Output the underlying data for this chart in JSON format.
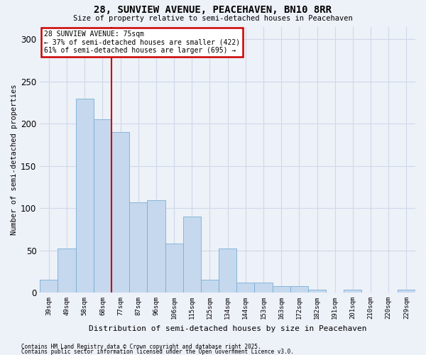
{
  "title_line1": "28, SUNVIEW AVENUE, PEACEHAVEN, BN10 8RR",
  "title_line2": "Size of property relative to semi-detached houses in Peacehaven",
  "xlabel": "Distribution of semi-detached houses by size in Peacehaven",
  "ylabel": "Number of semi-detached properties",
  "categories": [
    "39sqm",
    "49sqm",
    "58sqm",
    "68sqm",
    "77sqm",
    "87sqm",
    "96sqm",
    "106sqm",
    "115sqm",
    "125sqm",
    "134sqm",
    "144sqm",
    "153sqm",
    "163sqm",
    "172sqm",
    "182sqm",
    "191sqm",
    "201sqm",
    "210sqm",
    "220sqm",
    "229sqm"
  ],
  "values": [
    15,
    52,
    230,
    205,
    190,
    107,
    109,
    58,
    90,
    15,
    52,
    12,
    12,
    8,
    8,
    3,
    0,
    3,
    0,
    0,
    3
  ],
  "bar_color": "#c5d8ee",
  "bar_edge_color": "#7aafd4",
  "property_line_x": 3.5,
  "property_line_color": "#cc0000",
  "annotation_line1": "28 SUNVIEW AVENUE: 75sqm",
  "annotation_line2": "← 37% of semi-detached houses are smaller (422)",
  "annotation_line3": "61% of semi-detached houses are larger (695) →",
  "background_color": "#edf1f8",
  "grid_color": "#d0d8e8",
  "footnote1": "Contains HM Land Registry data © Crown copyright and database right 2025.",
  "footnote2": "Contains public sector information licensed under the Open Government Licence v3.0.",
  "ylim": [
    0,
    315
  ],
  "yticks": [
    0,
    50,
    100,
    150,
    200,
    250,
    300
  ]
}
